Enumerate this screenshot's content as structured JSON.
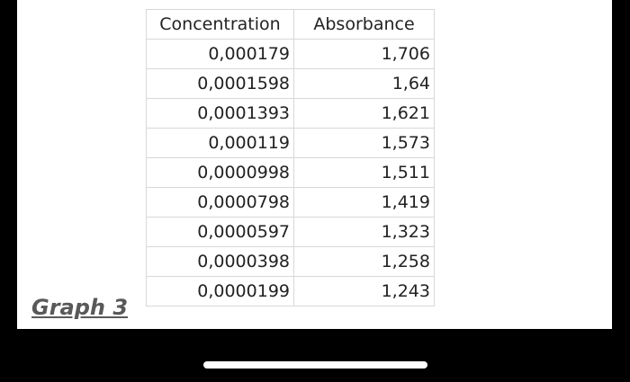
{
  "graph_label": "Graph 3",
  "table": {
    "headers": [
      "Concentration",
      "Absorbance"
    ],
    "rows": [
      [
        "0,000179",
        "1,706"
      ],
      [
        "0,0001598",
        "1,64"
      ],
      [
        "0,0001393",
        "1,621"
      ],
      [
        "0,000119",
        "1,573"
      ],
      [
        "0,0000998",
        "1,511"
      ],
      [
        "0,0000798",
        "1,419"
      ],
      [
        "0,0000597",
        "1,323"
      ],
      [
        "0,0000398",
        "1,258"
      ],
      [
        "0,0000199",
        "1,243"
      ]
    ]
  }
}
